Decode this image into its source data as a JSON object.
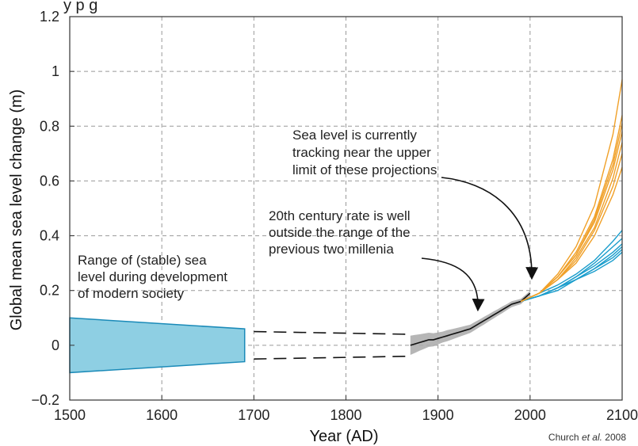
{
  "chart_data": {
    "type": "line",
    "xlabel": "Year (AD)",
    "ylabel": "Global mean sea level change (m)",
    "xlim": [
      1500,
      2100
    ],
    "ylim": [
      -0.2,
      1.2
    ],
    "x_ticks": [
      1500,
      1600,
      1700,
      1800,
      1900,
      2000,
      2100
    ],
    "x_tick_labels": [
      "1500",
      "1600",
      "1700",
      "1800",
      "1900",
      "2000",
      "2100"
    ],
    "y_ticks": [
      -0.2,
      0,
      0.2,
      0.4,
      0.6,
      0.8,
      1,
      1.2
    ],
    "y_tick_labels": [
      "−0.2",
      "0",
      "0.2",
      "0.4",
      "0.6",
      "0.8",
      "1",
      "1.2"
    ],
    "grid": true,
    "top_partial_text": "y                      p                  g",
    "credit_prefix": "Church ",
    "credit_italic": "et al.",
    "credit_suffix": " 2008",
    "colors": {
      "band_fill": "#8ecfe3",
      "band_edge": "#1a8ab8",
      "observed": "#111111",
      "observed_uncertainty": "#a9a9a9",
      "projection_high": "#f0a028",
      "projection_low": "#1a9dcc",
      "grid": "#999999"
    },
    "stable_range_band": {
      "x": [
        1500,
        1690
      ],
      "upper": [
        0.1,
        0.06
      ],
      "lower": [
        -0.1,
        -0.06
      ]
    },
    "dashed_extension": {
      "x": [
        1700,
        1870
      ],
      "upper": [
        0.05,
        0.04
      ],
      "lower": [
        -0.05,
        -0.04
      ]
    },
    "observed_series": {
      "x": [
        1870,
        1875,
        1880,
        1885,
        1890,
        1895,
        1900,
        1905,
        1910,
        1915,
        1920,
        1925,
        1930,
        1935,
        1940,
        1945,
        1950,
        1955,
        1960,
        1965,
        1970,
        1975,
        1980,
        1985,
        1990,
        1995,
        2000
      ],
      "y": [
        0.0,
        0.005,
        0.01,
        0.015,
        0.02,
        0.02,
        0.025,
        0.03,
        0.035,
        0.04,
        0.045,
        0.05,
        0.055,
        0.06,
        0.07,
        0.08,
        0.09,
        0.1,
        0.11,
        0.12,
        0.13,
        0.14,
        0.15,
        0.155,
        0.16,
        0.175,
        0.19
      ],
      "uncertainty": [
        0.035,
        0.033,
        0.03,
        0.028,
        0.026,
        0.024,
        0.022,
        0.02,
        0.02,
        0.019,
        0.018,
        0.017,
        0.016,
        0.015,
        0.015,
        0.014,
        0.014,
        0.013,
        0.013,
        0.012,
        0.012,
        0.011,
        0.011,
        0.01,
        0.01,
        0.009,
        0.009
      ]
    },
    "projections_high": {
      "x": [
        1990,
        2010,
        2030,
        2050,
        2070,
        2090,
        2100
      ],
      "series": [
        [
          0.16,
          0.19,
          0.26,
          0.36,
          0.51,
          0.77,
          0.97
        ],
        [
          0.16,
          0.19,
          0.25,
          0.34,
          0.47,
          0.68,
          0.84
        ],
        [
          0.16,
          0.19,
          0.25,
          0.33,
          0.46,
          0.66,
          0.81
        ],
        [
          0.16,
          0.19,
          0.25,
          0.33,
          0.45,
          0.64,
          0.78
        ],
        [
          0.16,
          0.19,
          0.24,
          0.32,
          0.43,
          0.61,
          0.74
        ],
        [
          0.16,
          0.19,
          0.24,
          0.31,
          0.42,
          0.58,
          0.7
        ],
        [
          0.16,
          0.19,
          0.24,
          0.3,
          0.4,
          0.55,
          0.65
        ]
      ]
    },
    "projections_low": {
      "x": [
        1990,
        2010,
        2030,
        2050,
        2070,
        2090,
        2100
      ],
      "series": [
        [
          0.16,
          0.19,
          0.22,
          0.26,
          0.31,
          0.38,
          0.42
        ],
        [
          0.16,
          0.18,
          0.21,
          0.25,
          0.3,
          0.36,
          0.39
        ],
        [
          0.16,
          0.18,
          0.21,
          0.25,
          0.29,
          0.34,
          0.37
        ],
        [
          0.16,
          0.18,
          0.21,
          0.24,
          0.28,
          0.33,
          0.36
        ],
        [
          0.16,
          0.18,
          0.21,
          0.24,
          0.28,
          0.32,
          0.35
        ],
        [
          0.16,
          0.18,
          0.2,
          0.24,
          0.27,
          0.31,
          0.34
        ]
      ]
    },
    "annotations": [
      {
        "lines": [
          "Range of (stable) sea",
          "level during development",
          "of modern society"
        ]
      },
      {
        "lines": [
          "20th century rate is well",
          "outside the range of the",
          "previous two millenia"
        ]
      },
      {
        "lines": [
          "Sea level is currently",
          "tracking near the upper",
          "limit of these projections"
        ]
      }
    ]
  }
}
